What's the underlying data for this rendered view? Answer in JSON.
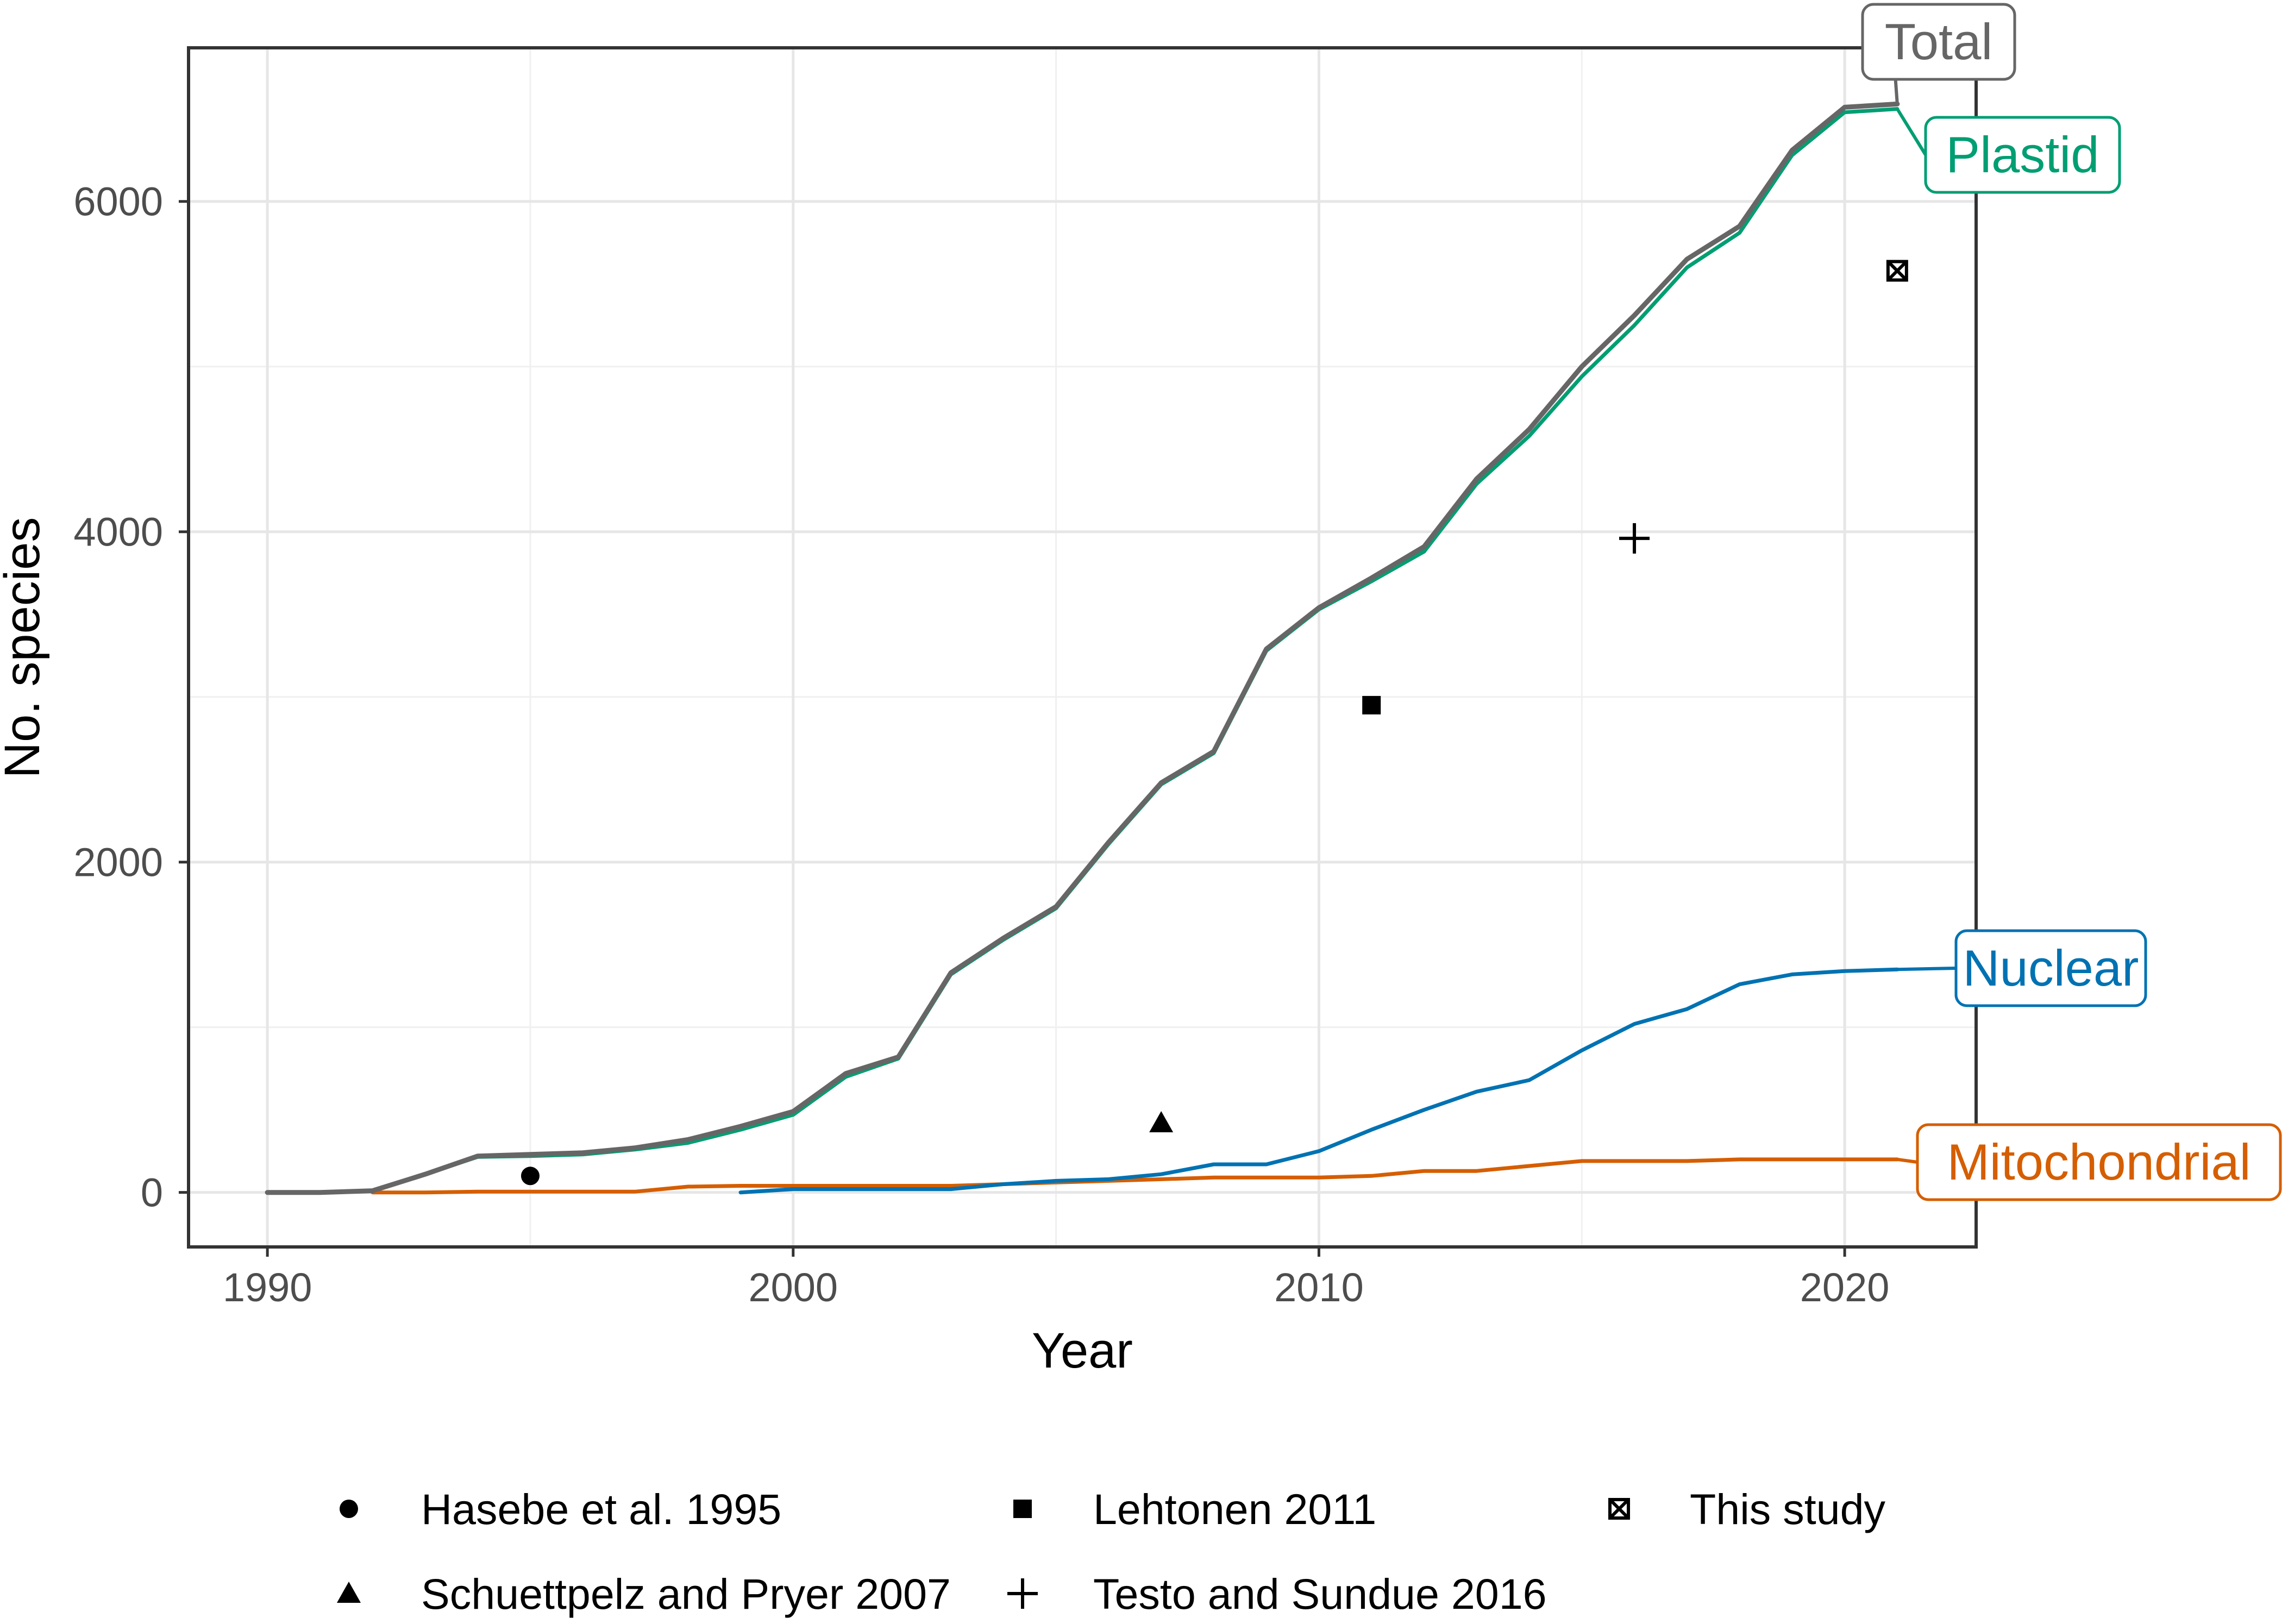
{
  "chart_data": {
    "type": "line",
    "xlabel": "Year",
    "ylabel": "No. species",
    "xlim": [
      1988.5,
      2022.5
    ],
    "ylim": [
      -330,
      6930
    ],
    "x_ticks": [
      1990,
      2000,
      2010,
      2020
    ],
    "y_ticks": [
      0,
      2000,
      4000,
      6000
    ],
    "x_tick_labels": [
      "1990",
      "2000",
      "2010",
      "2020"
    ],
    "y_tick_labels": [
      "0",
      "2000",
      "4000",
      "6000"
    ],
    "grid": true,
    "series": [
      {
        "name": "Total",
        "label": "Total",
        "color": "#666666",
        "x": [
          1990,
          1991,
          1992,
          1993,
          1994,
          1995,
          1996,
          1997,
          1998,
          1999,
          2000,
          2001,
          2002,
          2003,
          2004,
          2005,
          2006,
          2007,
          2008,
          2009,
          2010,
          2011,
          2012,
          2013,
          2014,
          2015,
          2016,
          2017,
          2018,
          2019,
          2020,
          2021
        ],
        "values": [
          0,
          0,
          10,
          110,
          220,
          230,
          240,
          270,
          320,
          400,
          490,
          720,
          820,
          1330,
          1540,
          1730,
          2120,
          2480,
          2670,
          3290,
          3540,
          3720,
          3910,
          4320,
          4620,
          5000,
          5310,
          5650,
          5850,
          6310,
          6570,
          6590
        ]
      },
      {
        "name": "Plastid",
        "label": "Plastid",
        "color": "#009E73",
        "x": [
          1990,
          1991,
          1992,
          1993,
          1994,
          1995,
          1996,
          1997,
          1998,
          1999,
          2000,
          2001,
          2002,
          2003,
          2004,
          2005,
          2006,
          2007,
          2008,
          2009,
          2010,
          2011,
          2012,
          2013,
          2014,
          2015,
          2016,
          2017,
          2018,
          2019,
          2020,
          2021
        ],
        "values": [
          0,
          0,
          10,
          110,
          215,
          220,
          230,
          260,
          300,
          380,
          470,
          700,
          810,
          1320,
          1530,
          1720,
          2110,
          2470,
          2660,
          3280,
          3530,
          3700,
          3880,
          4290,
          4580,
          4940,
          5250,
          5600,
          5810,
          6280,
          6540,
          6560
        ]
      },
      {
        "name": "Nuclear",
        "label": "Nuclear",
        "color": "#0072B2",
        "x": [
          1999,
          2000,
          2001,
          2002,
          2003,
          2004,
          2005,
          2006,
          2007,
          2008,
          2009,
          2010,
          2011,
          2012,
          2013,
          2014,
          2015,
          2016,
          2017,
          2018,
          2019,
          2020,
          2021
        ],
        "values": [
          0,
          20,
          20,
          20,
          20,
          50,
          70,
          80,
          110,
          170,
          170,
          250,
          380,
          500,
          610,
          680,
          860,
          1020,
          1110,
          1260,
          1320,
          1340,
          1350
        ]
      },
      {
        "name": "Mitochondrial",
        "label": "Mitochondrial",
        "color": "#D55E00",
        "x": [
          1992,
          1993,
          1994,
          1995,
          1996,
          1997,
          1998,
          1999,
          2000,
          2001,
          2002,
          2003,
          2004,
          2005,
          2006,
          2007,
          2008,
          2009,
          2010,
          2011,
          2012,
          2013,
          2014,
          2015,
          2016,
          2017,
          2018,
          2019,
          2020,
          2021
        ],
        "values": [
          0,
          0,
          5,
          5,
          5,
          5,
          35,
          40,
          40,
          40,
          40,
          40,
          50,
          60,
          70,
          80,
          90,
          90,
          90,
          100,
          130,
          130,
          160,
          190,
          190,
          190,
          200,
          200,
          200,
          200
        ]
      }
    ],
    "points": [
      {
        "name": "Hasebe et al. 1995",
        "x": 1995,
        "y": 100,
        "shape": "circle"
      },
      {
        "name": "Lehtonen 2011",
        "x": 2011,
        "y": 2950,
        "shape": "square"
      },
      {
        "name": "This study",
        "x": 2021,
        "y": 5580,
        "shape": "boxed-x"
      },
      {
        "name": "Schuettpelz and Pryer 2007",
        "x": 2007,
        "y": 420,
        "shape": "triangle"
      },
      {
        "name": "Testo and Sundue 2016",
        "x": 2016,
        "y": 3960,
        "shape": "plus"
      }
    ],
    "legend": {
      "position": "bottom",
      "items": [
        {
          "label": "Hasebe et al. 1995",
          "shape": "circle"
        },
        {
          "label": "Lehtonen 2011",
          "shape": "square"
        },
        {
          "label": "This study",
          "shape": "boxed-x"
        },
        {
          "label": "Schuettpelz and Pryer 2007",
          "shape": "triangle"
        },
        {
          "label": "Testo and Sundue 2016",
          "shape": "plus"
        }
      ]
    }
  }
}
